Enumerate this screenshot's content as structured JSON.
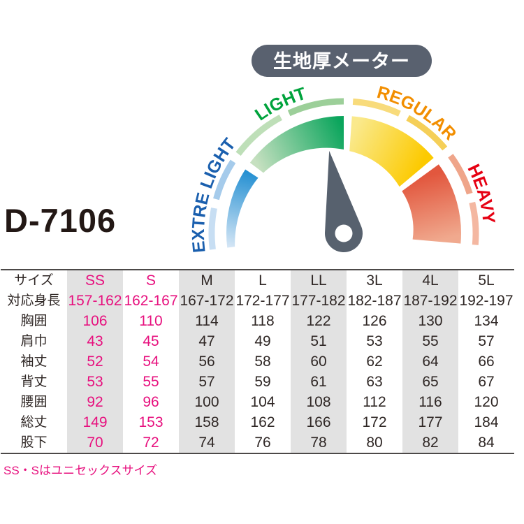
{
  "product_code": "D-7106",
  "footer_note": "SS・Sはユニセックスサイズ",
  "colors": {
    "pink": "#e7107e",
    "table_text": "#2f2725",
    "column_shade": "#e2e2e2",
    "needle": "#57616e",
    "pill_bg": "#59616f",
    "pill_text": "#ffffff",
    "product_code_text": "#231815",
    "table_border": "#4c4948"
  },
  "chart_data": {
    "type": "gauge",
    "title": "生地厚メーター",
    "needle_zone": "LIGHT",
    "needle_angle_deg": 100,
    "sweep_start_deg": 187,
    "sweep_end_deg": -5,
    "zones": [
      {
        "label": "EXTRE LIGHT",
        "start": 187,
        "end": 147,
        "label_angle": 164,
        "label_color": "#1a5fae",
        "wedge": [
          "#d3e5f5",
          "#2590d2"
        ],
        "ring": [
          "#c7def3",
          "#a5cbeb"
        ],
        "r_in": [
          157,
          146
        ]
      },
      {
        "label": "LIGHT",
        "start": 143,
        "end": 90,
        "label_angle": 116,
        "label_color": "#00a33c",
        "wedge": [
          "#c6e0c0",
          "#0aa55c"
        ],
        "ring": [
          "#bedfb8",
          "#9ccf99"
        ],
        "r_in": [
          144,
          120
        ]
      },
      {
        "label": "REGULAR",
        "start": 86,
        "end": 40,
        "label_angle": 59,
        "label_color": "#f28e00",
        "wedge": [
          "#fae98c",
          "#fcca00"
        ],
        "ring": [
          "#f8db7b",
          "#f5cf58"
        ],
        "r_in": [
          118,
          104
        ]
      },
      {
        "label": "HEAVY",
        "start": 36,
        "end": -5,
        "label_angle": 16,
        "label_color": "#e60012",
        "wedge": [
          "#e2573e",
          "#f0a98e"
        ],
        "ring": [
          "#efa58a",
          "#f4b7a1"
        ],
        "r_in": [
          103,
          99
        ]
      }
    ]
  },
  "size_table": {
    "columns": [
      "サイズ",
      "SS",
      "S",
      "M",
      "L",
      "LL",
      "3L",
      "4L",
      "5L"
    ],
    "pink_columns": [
      "SS",
      "S"
    ],
    "shaded_columns": [
      "SS",
      "M",
      "LL",
      "4L"
    ],
    "rows": [
      {
        "label": "対応身長",
        "values": [
          "157-162",
          "162-167",
          "167-172",
          "172-177",
          "177-182",
          "182-187",
          "187-192",
          "192-197"
        ]
      },
      {
        "label": "胸囲",
        "values": [
          "106",
          "110",
          "114",
          "118",
          "122",
          "126",
          "130",
          "134"
        ]
      },
      {
        "label": "肩巾",
        "values": [
          "43",
          "45",
          "47",
          "49",
          "51",
          "53",
          "55",
          "57"
        ]
      },
      {
        "label": "袖丈",
        "values": [
          "52",
          "54",
          "56",
          "58",
          "60",
          "62",
          "64",
          "66"
        ]
      },
      {
        "label": "背丈",
        "values": [
          "53",
          "55",
          "57",
          "59",
          "61",
          "63",
          "65",
          "67"
        ]
      },
      {
        "label": "腰囲",
        "values": [
          "92",
          "96",
          "100",
          "104",
          "108",
          "112",
          "116",
          "120"
        ]
      },
      {
        "label": "総丈",
        "values": [
          "149",
          "153",
          "158",
          "162",
          "166",
          "172",
          "177",
          "184"
        ]
      },
      {
        "label": "股下",
        "values": [
          "70",
          "72",
          "74",
          "76",
          "78",
          "80",
          "82",
          "84"
        ]
      }
    ]
  }
}
